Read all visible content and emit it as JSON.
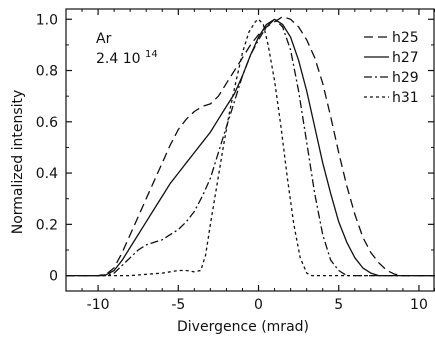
{
  "chart_data": {
    "type": "line",
    "xlabel": "Divergence (mrad)",
    "ylabel": "Normalized intensity",
    "xlim": [
      -12,
      11
    ],
    "ylim": [
      -0.06,
      1.04
    ],
    "xticks": [
      -10,
      -5,
      0,
      5,
      10
    ],
    "yticks": [
      0,
      0.2,
      0.4,
      0.6,
      0.8,
      1.0
    ],
    "xtick_labels": [
      "-10",
      "-5",
      "0",
      "5",
      "10"
    ],
    "ytick_labels": [
      "0",
      "0.2",
      "0.4",
      "0.6",
      "0.8",
      "1.0"
    ],
    "annotation": {
      "line1": "Ar",
      "line2_base": "2.4  10",
      "line2_sup": "14"
    },
    "legend_position": "top-right",
    "color": "#111111",
    "series": [
      {
        "name": "h25",
        "dash": "9,5",
        "points": [
          [
            -12,
            0
          ],
          [
            -10,
            0
          ],
          [
            -9.5,
            0.005
          ],
          [
            -9.0,
            0.03
          ],
          [
            -8.5,
            0.09
          ],
          [
            -8.0,
            0.16
          ],
          [
            -7.5,
            0.23
          ],
          [
            -7.0,
            0.3
          ],
          [
            -6.5,
            0.37
          ],
          [
            -6.0,
            0.44
          ],
          [
            -5.5,
            0.51
          ],
          [
            -5.0,
            0.57
          ],
          [
            -4.5,
            0.61
          ],
          [
            -4.0,
            0.64
          ],
          [
            -3.5,
            0.66
          ],
          [
            -3.0,
            0.67
          ],
          [
            -2.5,
            0.7
          ],
          [
            -2.0,
            0.75
          ],
          [
            -1.5,
            0.8
          ],
          [
            -1.0,
            0.85
          ],
          [
            -0.5,
            0.9
          ],
          [
            0,
            0.94
          ],
          [
            0.5,
            0.97
          ],
          [
            1.0,
            0.99
          ],
          [
            1.5,
            1.01
          ],
          [
            2.0,
            1.0
          ],
          [
            2.5,
            0.97
          ],
          [
            3.0,
            0.92
          ],
          [
            3.5,
            0.85
          ],
          [
            4.0,
            0.75
          ],
          [
            4.5,
            0.62
          ],
          [
            5.0,
            0.48
          ],
          [
            5.5,
            0.35
          ],
          [
            6.0,
            0.24
          ],
          [
            6.5,
            0.15
          ],
          [
            7.0,
            0.09
          ],
          [
            7.5,
            0.05
          ],
          [
            8.0,
            0.02
          ],
          [
            8.5,
            0.005
          ],
          [
            9.0,
            0
          ],
          [
            11,
            0
          ]
        ]
      },
      {
        "name": "h27",
        "dash": "",
        "points": [
          [
            -12,
            0
          ],
          [
            -10,
            0
          ],
          [
            -9.5,
            0.003
          ],
          [
            -9.0,
            0.02
          ],
          [
            -8.5,
            0.06
          ],
          [
            -8.0,
            0.11
          ],
          [
            -7.5,
            0.16
          ],
          [
            -7.0,
            0.21
          ],
          [
            -6.5,
            0.26
          ],
          [
            -6.0,
            0.31
          ],
          [
            -5.5,
            0.36
          ],
          [
            -5.0,
            0.4
          ],
          [
            -4.5,
            0.44
          ],
          [
            -4.0,
            0.48
          ],
          [
            -3.5,
            0.52
          ],
          [
            -3.0,
            0.56
          ],
          [
            -2.5,
            0.61
          ],
          [
            -2.0,
            0.66
          ],
          [
            -1.5,
            0.71
          ],
          [
            -1.0,
            0.78
          ],
          [
            -0.5,
            0.86
          ],
          [
            0,
            0.93
          ],
          [
            0.5,
            0.98
          ],
          [
            1.0,
            1.0
          ],
          [
            1.5,
            0.98
          ],
          [
            2.0,
            0.93
          ],
          [
            2.5,
            0.84
          ],
          [
            3.0,
            0.72
          ],
          [
            3.5,
            0.58
          ],
          [
            4.0,
            0.44
          ],
          [
            4.5,
            0.32
          ],
          [
            5.0,
            0.21
          ],
          [
            5.5,
            0.13
          ],
          [
            6.0,
            0.07
          ],
          [
            6.5,
            0.03
          ],
          [
            7.0,
            0.01
          ],
          [
            7.5,
            0
          ],
          [
            11,
            0
          ]
        ]
      },
      {
        "name": "h29",
        "dash": "8,3,2,3",
        "points": [
          [
            -12,
            0
          ],
          [
            -9.5,
            0
          ],
          [
            -9.0,
            0.01
          ],
          [
            -8.5,
            0.04
          ],
          [
            -8.0,
            0.07
          ],
          [
            -7.5,
            0.1
          ],
          [
            -7.0,
            0.12
          ],
          [
            -6.5,
            0.13
          ],
          [
            -6.0,
            0.14
          ],
          [
            -5.5,
            0.16
          ],
          [
            -5.0,
            0.18
          ],
          [
            -4.5,
            0.21
          ],
          [
            -4.0,
            0.25
          ],
          [
            -3.5,
            0.31
          ],
          [
            -3.0,
            0.38
          ],
          [
            -2.5,
            0.48
          ],
          [
            -2.0,
            0.58
          ],
          [
            -1.5,
            0.68
          ],
          [
            -1.0,
            0.78
          ],
          [
            -0.5,
            0.86
          ],
          [
            0,
            0.92
          ],
          [
            0.5,
            0.97
          ],
          [
            1.0,
            1.0
          ],
          [
            1.5,
            0.97
          ],
          [
            2.0,
            0.88
          ],
          [
            2.5,
            0.72
          ],
          [
            3.0,
            0.52
          ],
          [
            3.5,
            0.32
          ],
          [
            4.0,
            0.16
          ],
          [
            4.5,
            0.06
          ],
          [
            5.0,
            0.02
          ],
          [
            5.5,
            0
          ],
          [
            11,
            0
          ]
        ]
      },
      {
        "name": "h31",
        "dash": "3,3",
        "points": [
          [
            -12,
            0
          ],
          [
            -8.0,
            0
          ],
          [
            -7.0,
            0.005
          ],
          [
            -6.0,
            0.01
          ],
          [
            -5.5,
            0.015
          ],
          [
            -5.0,
            0.02
          ],
          [
            -4.5,
            0.02
          ],
          [
            -4.0,
            0.015
          ],
          [
            -3.6,
            0.02
          ],
          [
            -3.3,
            0.08
          ],
          [
            -3.0,
            0.2
          ],
          [
            -2.6,
            0.35
          ],
          [
            -2.2,
            0.5
          ],
          [
            -1.8,
            0.64
          ],
          [
            -1.4,
            0.76
          ],
          [
            -1.0,
            0.87
          ],
          [
            -0.6,
            0.95
          ],
          [
            -0.2,
            0.99
          ],
          [
            0,
            1.0
          ],
          [
            0.3,
            0.98
          ],
          [
            0.6,
            0.9
          ],
          [
            1.0,
            0.76
          ],
          [
            1.4,
            0.58
          ],
          [
            1.8,
            0.38
          ],
          [
            2.2,
            0.2
          ],
          [
            2.6,
            0.07
          ],
          [
            3.0,
            0.01
          ],
          [
            3.3,
            0
          ],
          [
            11,
            0
          ]
        ]
      }
    ]
  }
}
